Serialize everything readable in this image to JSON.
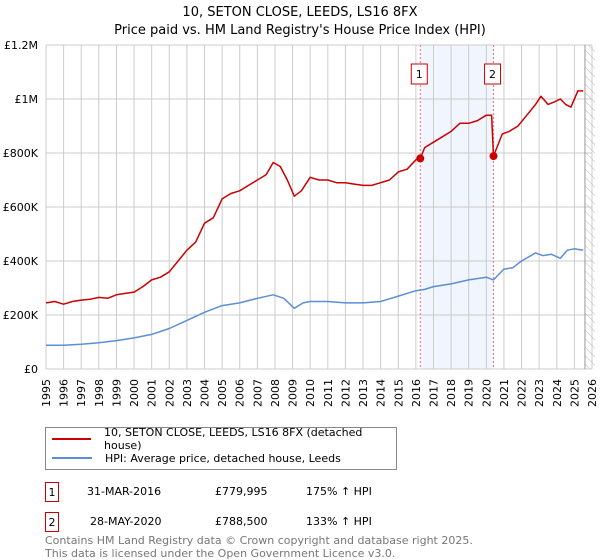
{
  "chart_data": {
    "type": "line",
    "title": "10, SETON CLOSE, LEEDS, LS16 8FX",
    "subtitle": "Price paid vs. HM Land Registry's House Price Index (HPI)",
    "xlim": [
      1995,
      2026
    ],
    "ylim": [
      0,
      1200000
    ],
    "y_ticks": [
      {
        "v": 0,
        "label": "£0"
      },
      {
        "v": 200000,
        "label": "£200K"
      },
      {
        "v": 400000,
        "label": "£400K"
      },
      {
        "v": 600000,
        "label": "£600K"
      },
      {
        "v": 800000,
        "label": "£800K"
      },
      {
        "v": 1000000,
        "label": "£1M"
      },
      {
        "v": 1200000,
        "label": "£1.2M"
      }
    ],
    "x_ticks": [
      "1995",
      "1996",
      "1997",
      "1998",
      "1999",
      "2000",
      "2001",
      "2002",
      "2003",
      "2004",
      "2005",
      "2006",
      "2007",
      "2008",
      "2009",
      "2010",
      "2011",
      "2012",
      "2013",
      "2014",
      "2015",
      "2016",
      "2017",
      "2018",
      "2019",
      "2020",
      "2021",
      "2022",
      "2023",
      "2024",
      "2025",
      "2026"
    ],
    "grid": true,
    "shaded_range": [
      2016.25,
      2020.41
    ],
    "future_hatch_from": 2025.6,
    "series": [
      {
        "name": "10, SETON CLOSE, LEEDS, LS16 8FX (detached house)",
        "color": "#cc0000",
        "x": [
          1995,
          1995.5,
          1996,
          1996.5,
          1997,
          1997.5,
          1998,
          1998.5,
          1999,
          1999.5,
          2000,
          2000.5,
          2001,
          2001.5,
          2002,
          2002.5,
          2003,
          2003.5,
          2004,
          2004.5,
          2005,
          2005.5,
          2006,
          2006.5,
          2007,
          2007.5,
          2007.9,
          2008.3,
          2008.7,
          2009.1,
          2009.5,
          2010,
          2010.5,
          2011,
          2011.5,
          2012,
          2012.5,
          2013,
          2013.5,
          2014,
          2014.5,
          2015,
          2015.5,
          2016,
          2016.25,
          2016.5,
          2017,
          2017.5,
          2018,
          2018.5,
          2019,
          2019.5,
          2020,
          2020.3,
          2020.41,
          2020.9,
          2021.3,
          2021.8,
          2022.3,
          2022.8,
          2023.1,
          2023.5,
          2023.9,
          2024.2,
          2024.5,
          2024.8,
          2025.2,
          2025.5
        ],
        "y": [
          245000,
          250000,
          240000,
          250000,
          255000,
          258000,
          265000,
          262000,
          275000,
          280000,
          285000,
          305000,
          330000,
          340000,
          360000,
          400000,
          440000,
          470000,
          540000,
          560000,
          630000,
          650000,
          660000,
          680000,
          700000,
          720000,
          765000,
          750000,
          700000,
          640000,
          660000,
          710000,
          700000,
          700000,
          690000,
          690000,
          685000,
          680000,
          680000,
          690000,
          700000,
          730000,
          740000,
          775000,
          780000,
          820000,
          840000,
          860000,
          880000,
          910000,
          910000,
          920000,
          940000,
          940000,
          788500,
          870000,
          880000,
          900000,
          940000,
          980000,
          1010000,
          980000,
          990000,
          1000000,
          980000,
          970000,
          1030000,
          1030000
        ]
      },
      {
        "name": "HPI: Average price, detached house, Leeds",
        "color": "#5b8fd4",
        "x": [
          1995,
          1996,
          1997,
          1998,
          1999,
          2000,
          2001,
          2002,
          2003,
          2004,
          2005,
          2006,
          2007,
          2007.9,
          2008.5,
          2009.1,
          2009.6,
          2010,
          2011,
          2012,
          2013,
          2014,
          2015,
          2016,
          2016.5,
          2017,
          2018,
          2019,
          2020,
          2020.4,
          2021,
          2021.5,
          2022,
          2022.8,
          2023.2,
          2023.7,
          2024.2,
          2024.6,
          2025,
          2025.5
        ],
        "y": [
          88000,
          88000,
          92000,
          97000,
          105000,
          115000,
          128000,
          150000,
          180000,
          210000,
          235000,
          245000,
          262000,
          275000,
          262000,
          225000,
          245000,
          250000,
          250000,
          245000,
          245000,
          250000,
          270000,
          290000,
          295000,
          305000,
          315000,
          330000,
          340000,
          330000,
          370000,
          375000,
          400000,
          430000,
          420000,
          425000,
          410000,
          440000,
          445000,
          440000
        ]
      }
    ],
    "sales": [
      {
        "id": "1",
        "x": 2016.25,
        "y": 779995
      },
      {
        "id": "2",
        "x": 2020.41,
        "y": 788500
      }
    ]
  },
  "legend": {
    "property": "10, SETON CLOSE, LEEDS, LS16 8FX (detached house)",
    "hpi": "HPI: Average price, detached house, Leeds"
  },
  "transactions": [
    {
      "id": "1",
      "date": "31-MAR-2016",
      "price": "£779,995",
      "change": "175% ↑ HPI"
    },
    {
      "id": "2",
      "date": "28-MAY-2020",
      "price": "£788,500",
      "change": "133% ↑ HPI"
    }
  ],
  "footer": {
    "line1": "Contains HM Land Registry data © Crown copyright and database right 2025.",
    "line2": "This data is licensed under the Open Government Licence v3.0."
  }
}
